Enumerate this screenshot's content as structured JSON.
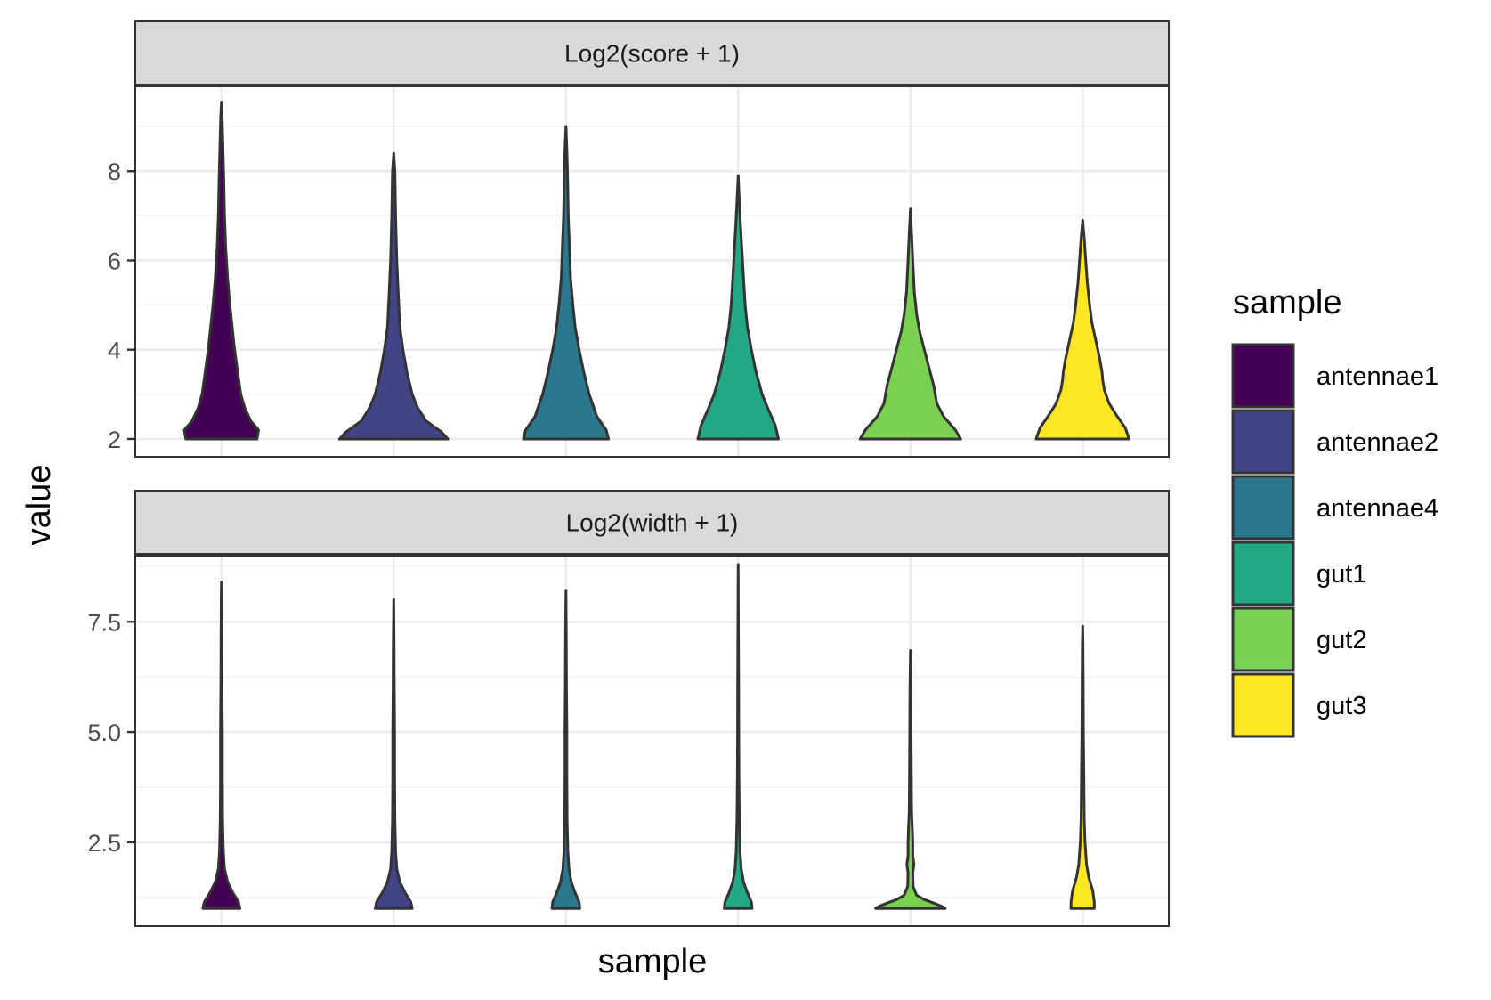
{
  "chart_data": {
    "type": "violin",
    "xlabel": "sample",
    "ylabel": "value",
    "categories": [
      "antennae1",
      "antennae2",
      "antennae4",
      "gut1",
      "gut2",
      "gut3"
    ],
    "colors": {
      "antennae1": "#440154",
      "antennae2": "#414487",
      "antennae4": "#2A788E",
      "gut1": "#22A884",
      "gut2": "#7AD151",
      "gut3": "#FDE725"
    },
    "legend": {
      "title": "sample",
      "placement": "right",
      "entries": [
        "antennae1",
        "antennae2",
        "antennae4",
        "gut1",
        "gut2",
        "gut3"
      ]
    },
    "grid": true,
    "panels": [
      {
        "strip": "Log2(score + 1)",
        "ylim": [
          1.6,
          9.9
        ],
        "yticks": [
          2,
          4,
          6,
          8
        ],
        "ytick_labels": [
          "2",
          "4",
          "6",
          "8"
        ],
        "violins": [
          {
            "sample": "antennae1",
            "profile": [
              [
                2.0,
                0.46
              ],
              [
                2.2,
                0.48
              ],
              [
                2.4,
                0.38
              ],
              [
                2.7,
                0.3
              ],
              [
                3.0,
                0.25
              ],
              [
                3.5,
                0.21
              ],
              [
                4.0,
                0.17
              ],
              [
                4.5,
                0.14
              ],
              [
                5.0,
                0.11
              ],
              [
                5.6,
                0.08
              ],
              [
                6.3,
                0.055
              ],
              [
                7.0,
                0.04
              ],
              [
                7.8,
                0.03
              ],
              [
                8.5,
                0.02
              ],
              [
                9.2,
                0.01
              ],
              [
                9.55,
                0.0
              ]
            ]
          },
          {
            "sample": "antennae2",
            "profile": [
              [
                2.0,
                0.7
              ],
              [
                2.15,
                0.62
              ],
              [
                2.4,
                0.42
              ],
              [
                2.7,
                0.31
              ],
              [
                3.0,
                0.24
              ],
              [
                3.5,
                0.17
              ],
              [
                4.0,
                0.12
              ],
              [
                4.5,
                0.08
              ],
              [
                5.2,
                0.06
              ],
              [
                6.0,
                0.04
              ],
              [
                7.0,
                0.025
              ],
              [
                8.0,
                0.015
              ],
              [
                8.4,
                0.0
              ]
            ]
          },
          {
            "sample": "antennae4",
            "profile": [
              [
                2.0,
                0.55
              ],
              [
                2.2,
                0.52
              ],
              [
                2.5,
                0.4
              ],
              [
                3.0,
                0.3
              ],
              [
                3.5,
                0.23
              ],
              [
                4.0,
                0.17
              ],
              [
                4.5,
                0.12
              ],
              [
                5.0,
                0.09
              ],
              [
                5.6,
                0.06
              ],
              [
                6.3,
                0.045
              ],
              [
                7.0,
                0.03
              ],
              [
                8.0,
                0.02
              ],
              [
                8.6,
                0.01
              ],
              [
                9.0,
                0.0
              ]
            ]
          },
          {
            "sample": "gut1",
            "profile": [
              [
                2.0,
                0.52
              ],
              [
                2.3,
                0.48
              ],
              [
                2.7,
                0.38
              ],
              [
                3.0,
                0.31
              ],
              [
                3.5,
                0.23
              ],
              [
                4.0,
                0.17
              ],
              [
                4.5,
                0.12
              ],
              [
                5.0,
                0.09
              ],
              [
                5.6,
                0.07
              ],
              [
                6.2,
                0.05
              ],
              [
                6.8,
                0.03
              ],
              [
                7.3,
                0.015
              ],
              [
                7.9,
                0.0
              ]
            ]
          },
          {
            "sample": "gut2",
            "profile": [
              [
                2.0,
                0.65
              ],
              [
                2.2,
                0.58
              ],
              [
                2.5,
                0.43
              ],
              [
                2.8,
                0.34
              ],
              [
                3.2,
                0.3
              ],
              [
                3.6,
                0.24
              ],
              [
                4.0,
                0.18
              ],
              [
                4.4,
                0.12
              ],
              [
                4.8,
                0.08
              ],
              [
                5.3,
                0.05
              ],
              [
                6.0,
                0.03
              ],
              [
                6.6,
                0.015
              ],
              [
                7.15,
                0.0
              ]
            ]
          },
          {
            "sample": "gut3",
            "profile": [
              [
                2.0,
                0.6
              ],
              [
                2.25,
                0.55
              ],
              [
                2.5,
                0.45
              ],
              [
                2.8,
                0.34
              ],
              [
                3.1,
                0.28
              ],
              [
                3.3,
                0.26
              ],
              [
                3.5,
                0.25
              ],
              [
                3.8,
                0.22
              ],
              [
                4.2,
                0.17
              ],
              [
                4.6,
                0.12
              ],
              [
                5.0,
                0.09
              ],
              [
                5.5,
                0.06
              ],
              [
                6.0,
                0.04
              ],
              [
                6.5,
                0.02
              ],
              [
                6.9,
                0.0
              ]
            ]
          }
        ]
      },
      {
        "strip": "Log2(width + 1)",
        "ylim": [
          0.6,
          9.0
        ],
        "yticks": [
          2.5,
          5.0,
          7.5
        ],
        "ytick_labels": [
          "2.5",
          "5.0",
          "7.5"
        ],
        "violins": [
          {
            "sample": "antennae1",
            "profile": [
              [
                1.0,
                0.24
              ],
              [
                1.15,
                0.22
              ],
              [
                1.35,
                0.15
              ],
              [
                1.6,
                0.08
              ],
              [
                1.9,
                0.04
              ],
              [
                2.3,
                0.025
              ],
              [
                3.0,
                0.015
              ],
              [
                4.0,
                0.012
              ],
              [
                5.0,
                0.012
              ],
              [
                6.0,
                0.008
              ],
              [
                7.0,
                0.005
              ],
              [
                8.0,
                0.003
              ],
              [
                8.4,
                0.0
              ]
            ]
          },
          {
            "sample": "antennae2",
            "profile": [
              [
                1.0,
                0.24
              ],
              [
                1.15,
                0.22
              ],
              [
                1.35,
                0.15
              ],
              [
                1.6,
                0.08
              ],
              [
                1.9,
                0.04
              ],
              [
                2.3,
                0.025
              ],
              [
                3.0,
                0.015
              ],
              [
                4.0,
                0.012
              ],
              [
                5.0,
                0.012
              ],
              [
                6.0,
                0.008
              ],
              [
                7.0,
                0.005
              ],
              [
                8.0,
                0.0
              ]
            ]
          },
          {
            "sample": "antennae4",
            "profile": [
              [
                1.0,
                0.18
              ],
              [
                1.15,
                0.17
              ],
              [
                1.35,
                0.12
              ],
              [
                1.6,
                0.07
              ],
              [
                1.9,
                0.04
              ],
              [
                2.3,
                0.025
              ],
              [
                3.0,
                0.015
              ],
              [
                4.0,
                0.012
              ],
              [
                5.0,
                0.012
              ],
              [
                6.0,
                0.008
              ],
              [
                7.0,
                0.005
              ],
              [
                8.2,
                0.0
              ]
            ]
          },
          {
            "sample": "gut1",
            "profile": [
              [
                1.0,
                0.18
              ],
              [
                1.15,
                0.17
              ],
              [
                1.35,
                0.12
              ],
              [
                1.6,
                0.07
              ],
              [
                1.9,
                0.04
              ],
              [
                2.3,
                0.025
              ],
              [
                3.0,
                0.015
              ],
              [
                4.0,
                0.01
              ],
              [
                5.0,
                0.008
              ],
              [
                6.0,
                0.006
              ],
              [
                7.0,
                0.004
              ],
              [
                8.0,
                0.002
              ],
              [
                8.8,
                0.0
              ]
            ]
          },
          {
            "sample": "gut2",
            "profile": [
              [
                1.0,
                0.45
              ],
              [
                1.05,
                0.4
              ],
              [
                1.12,
                0.3
              ],
              [
                1.2,
                0.18
              ],
              [
                1.3,
                0.08
              ],
              [
                1.5,
                0.035
              ],
              [
                1.8,
                0.03
              ],
              [
                2.0,
                0.045
              ],
              [
                2.2,
                0.03
              ],
              [
                2.5,
                0.03
              ],
              [
                2.8,
                0.025
              ],
              [
                3.2,
                0.015
              ],
              [
                4.0,
                0.012
              ],
              [
                5.0,
                0.009
              ],
              [
                6.0,
                0.006
              ],
              [
                6.85,
                0.0
              ]
            ]
          },
          {
            "sample": "gut3",
            "profile": [
              [
                1.0,
                0.15
              ],
              [
                1.15,
                0.15
              ],
              [
                1.4,
                0.13
              ],
              [
                1.7,
                0.08
              ],
              [
                2.0,
                0.05
              ],
              [
                2.5,
                0.03
              ],
              [
                3.0,
                0.02
              ],
              [
                4.0,
                0.015
              ],
              [
                5.0,
                0.01
              ],
              [
                6.0,
                0.007
              ],
              [
                7.0,
                0.004
              ],
              [
                7.4,
                0.0
              ]
            ]
          }
        ]
      }
    ]
  }
}
